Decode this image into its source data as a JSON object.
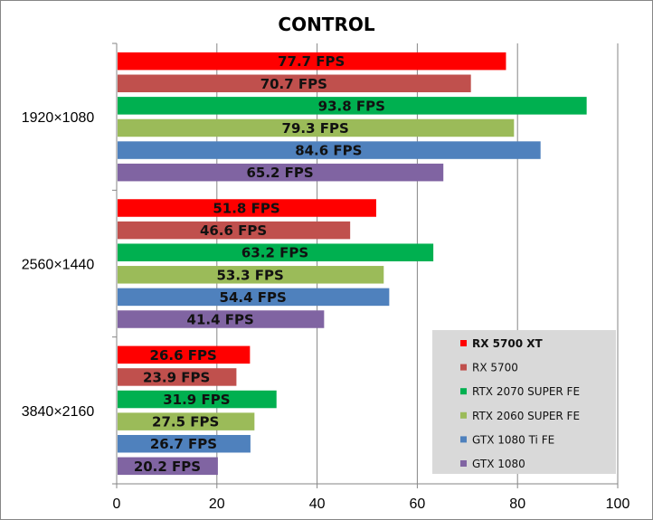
{
  "chart_data": {
    "type": "bar",
    "orientation": "horizontal",
    "title": "CONTROL",
    "categories": [
      "1920×1080",
      "2560×1440",
      "3840×2160"
    ],
    "series": [
      {
        "name": "RX 5700 XT",
        "color": "#ff0000",
        "values": [
          77.7,
          51.8,
          26.6
        ],
        "labels": [
          "77.7 FPS",
          "51.8 FPS",
          "26.6 FPS"
        ]
      },
      {
        "name": "RX 5700",
        "color": "#c0504d",
        "values": [
          70.7,
          46.6,
          23.9
        ],
        "labels": [
          "70.7 FPS",
          "46.6 FPS",
          "23.9 FPS"
        ]
      },
      {
        "name": "RTX 2070 SUPER FE",
        "color": "#00b050",
        "values": [
          93.8,
          63.2,
          31.9
        ],
        "labels": [
          "93.8 FPS",
          "63.2 FPS",
          "31.9 FPS"
        ]
      },
      {
        "name": "RTX 2060 SUPER FE",
        "color": "#9bbb59",
        "values": [
          79.3,
          53.3,
          27.5
        ],
        "labels": [
          "79.3 FPS",
          "53.3 FPS",
          "27.5 FPS"
        ]
      },
      {
        "name": "GTX 1080 Ti FE",
        "color": "#4f81bd",
        "values": [
          84.6,
          54.4,
          26.7
        ],
        "labels": [
          "84.6 FPS",
          "54.4 FPS",
          "26.7 FPS"
        ]
      },
      {
        "name": "GTX 1080",
        "color": "#8064a2",
        "values": [
          65.2,
          41.4,
          20.2
        ],
        "labels": [
          "65.2 FPS",
          "41.4 FPS",
          "20.2 FPS"
        ]
      }
    ],
    "xlim": [
      0,
      100
    ],
    "xticks": [
      0,
      20,
      40,
      60,
      80,
      100
    ],
    "xtick_labels": [
      "0",
      "20",
      "40",
      "60",
      "80",
      "100"
    ],
    "grid": "vertical",
    "legend_position": "bottom-right",
    "legend_background": "#d9d9d9"
  }
}
